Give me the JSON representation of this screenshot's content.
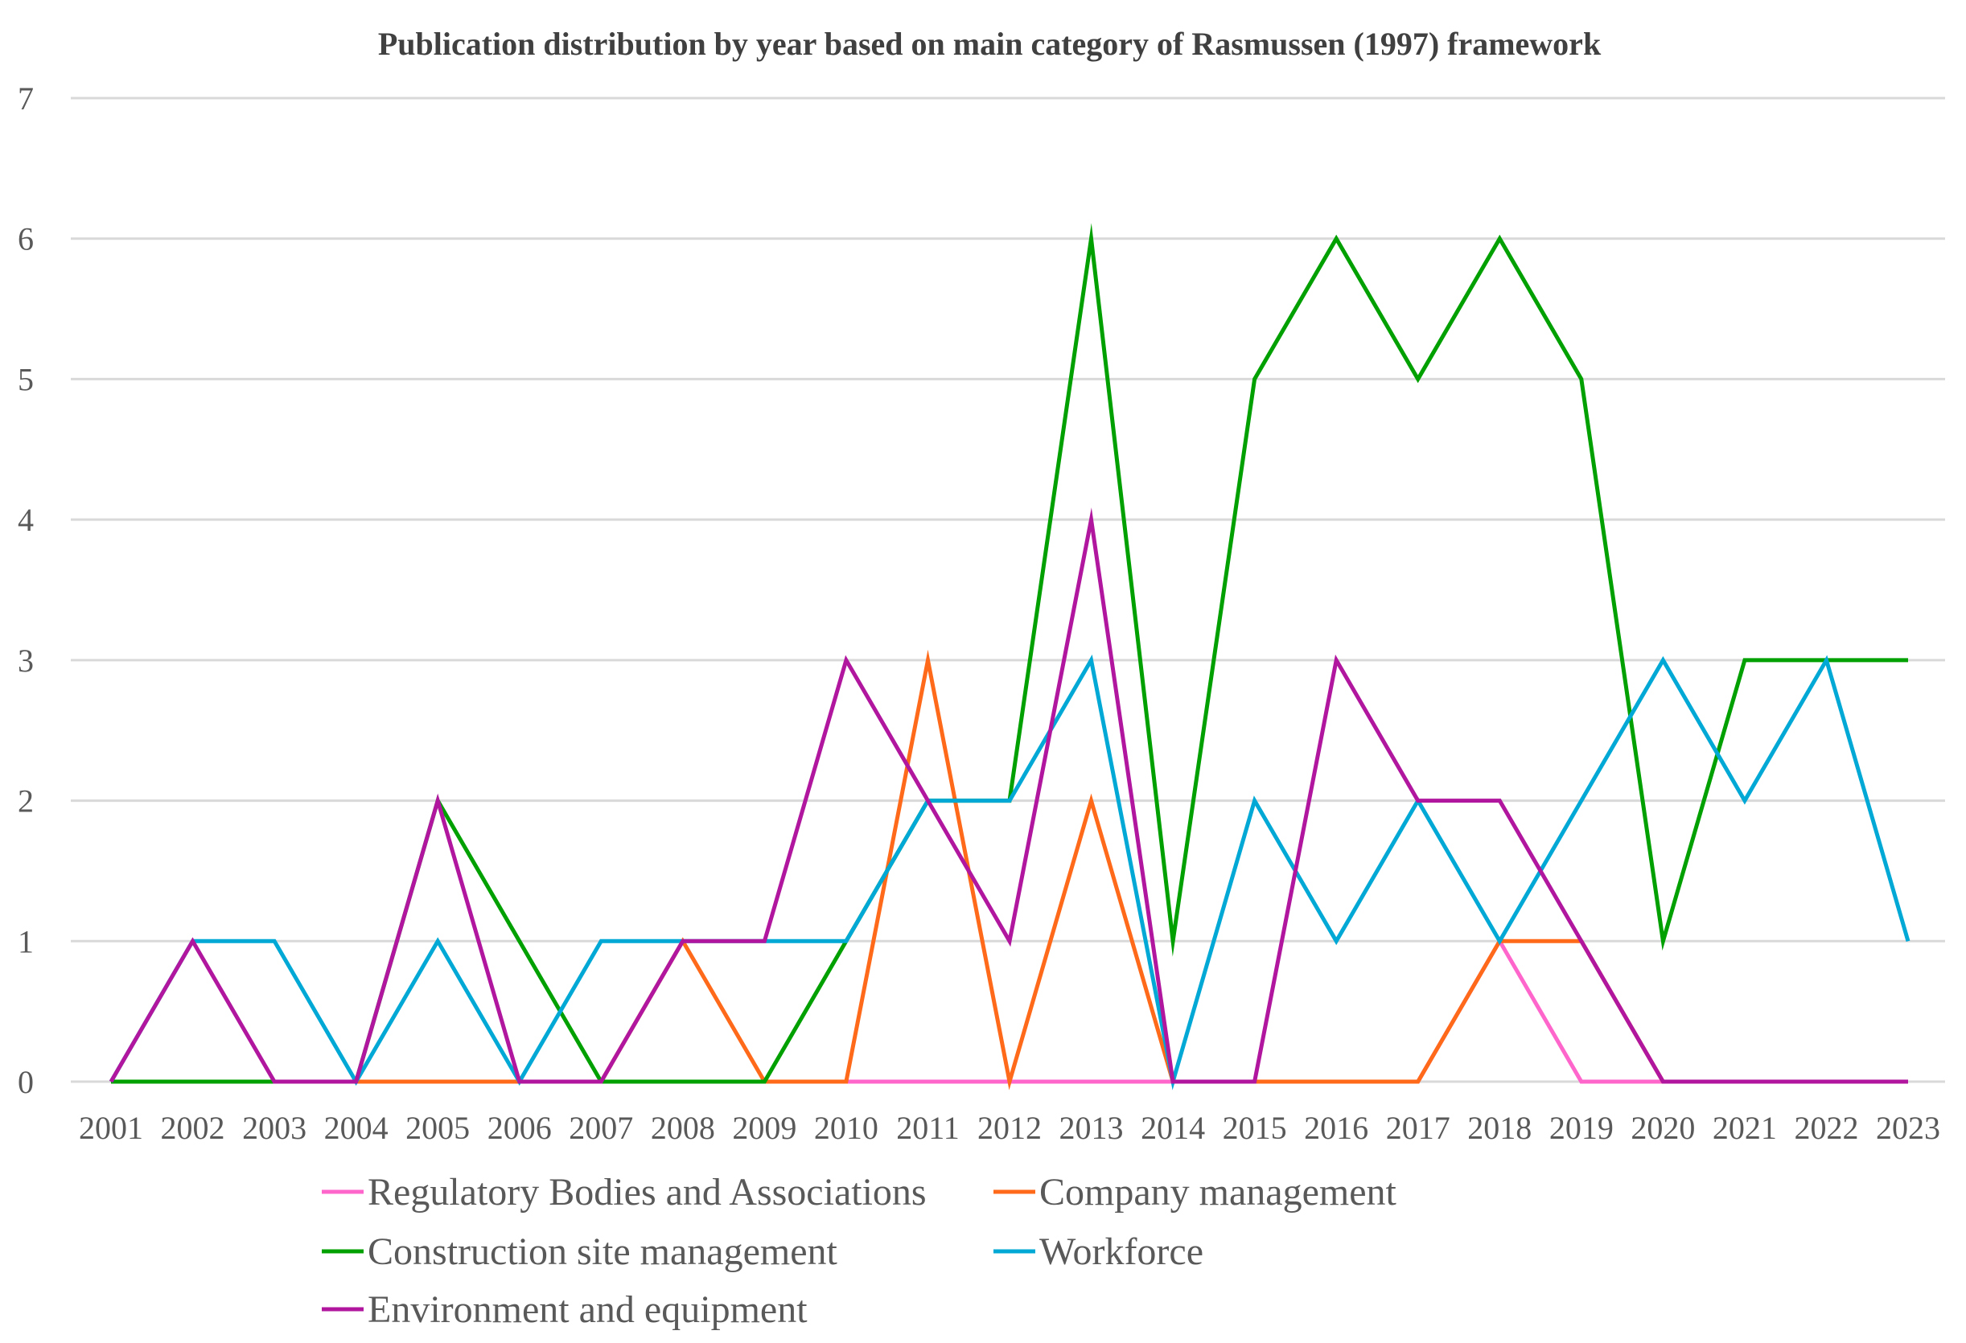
{
  "chart_data": {
    "type": "line",
    "title": "Publication distribution by year based on main category of Rasmussen (1997) framework",
    "xlabel": "",
    "ylabel": "",
    "ylim": [
      0,
      7
    ],
    "yticks": [
      0,
      1,
      2,
      3,
      4,
      5,
      6,
      7
    ],
    "grid": true,
    "legend_position": "bottom",
    "categories": [
      "2001",
      "2002",
      "2003",
      "2004",
      "2005",
      "2006",
      "2007",
      "2008",
      "2009",
      "2010",
      "2011",
      "2012",
      "2013",
      "2014",
      "2015",
      "2016",
      "2017",
      "2018",
      "2019",
      "2020",
      "2021",
      "2022",
      "2023"
    ],
    "series": [
      {
        "name": "Regulatory Bodies and Associations",
        "color": "#ff66cc",
        "values": [
          0,
          0,
          0,
          0,
          0,
          0,
          0,
          0,
          0,
          0,
          0,
          0,
          0,
          0,
          0,
          0,
          0,
          1,
          0,
          0,
          0,
          0,
          0
        ]
      },
      {
        "name": "Company management",
        "color": "#ff6a1a",
        "values": [
          0,
          0,
          0,
          0,
          0,
          0,
          0,
          1,
          0,
          0,
          3,
          0,
          2,
          0,
          0,
          0,
          0,
          1,
          1,
          0,
          0,
          0,
          0
        ]
      },
      {
        "name": "Construction site management",
        "color": "#00a000",
        "values": [
          0,
          0,
          0,
          0,
          2,
          1,
          0,
          0,
          0,
          1,
          2,
          2,
          6,
          1,
          5,
          6,
          5,
          6,
          5,
          1,
          3,
          3,
          3
        ]
      },
      {
        "name": "Workforce",
        "color": "#00a8d6",
        "values": [
          0,
          1,
          1,
          0,
          1,
          0,
          1,
          1,
          1,
          1,
          2,
          2,
          3,
          0,
          2,
          1,
          2,
          1,
          2,
          3,
          2,
          3,
          1
        ]
      },
      {
        "name": "Environment and equipment",
        "color": "#b0169e",
        "values": [
          0,
          1,
          0,
          0,
          2,
          0,
          0,
          1,
          1,
          3,
          2,
          1,
          4,
          0,
          0,
          3,
          2,
          2,
          1,
          0,
          0,
          0,
          0
        ]
      }
    ]
  }
}
